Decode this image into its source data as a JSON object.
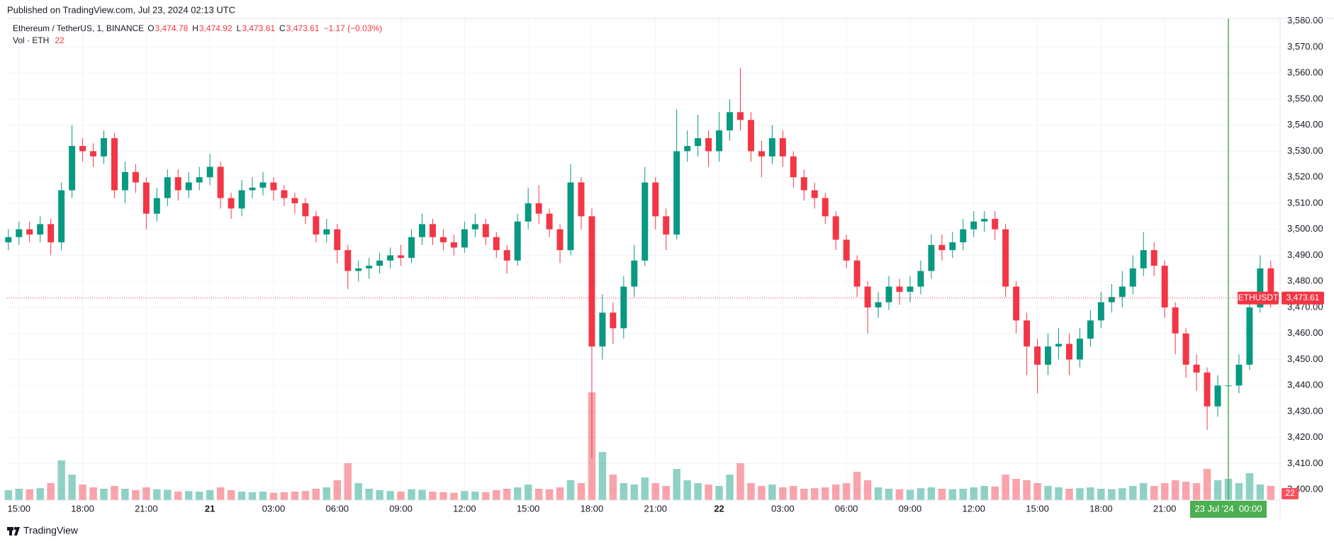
{
  "header": {
    "published": "Published on TradingView.com, Jul 23, 2024 02:13 UTC"
  },
  "footer": {
    "brand": "TradingView"
  },
  "chart_data": {
    "type": "candlestick",
    "legend": {
      "name": "Ethereum / TetherUS, 1, BINANCE",
      "o": "O",
      "open": "3,474.78",
      "h": "H",
      "high": "3,474.92",
      "l": "L",
      "low": "3,473.61",
      "c": "C",
      "close": "3,473.61",
      "change": "−1.17 (−0.03%)",
      "volume_name": "Vol · ETH",
      "volume": "22"
    },
    "symbol": "ETHUSDT",
    "last_price": {
      "value": 3473.61,
      "label": "3,473.61"
    },
    "up_color": "#089981",
    "down_color": "#f23645",
    "crosshair_color": "#4caf50",
    "categories": [
      null,
      "15:00",
      null,
      null,
      null,
      null,
      null,
      "18:00",
      null,
      null,
      null,
      null,
      null,
      "21:00",
      null,
      null,
      null,
      null,
      null,
      "21",
      null,
      null,
      null,
      null,
      null,
      "03:00",
      null,
      null,
      null,
      null,
      null,
      "06:00",
      null,
      null,
      null,
      null,
      null,
      "09:00",
      null,
      null,
      null,
      null,
      null,
      "12:00",
      null,
      null,
      null,
      null,
      null,
      "15:00",
      null,
      null,
      null,
      null,
      null,
      "18:00",
      null,
      null,
      null,
      null,
      null,
      "21:00",
      null,
      null,
      null,
      null,
      null,
      "22",
      null,
      null,
      null,
      null,
      null,
      "03:00",
      null,
      null,
      null,
      null,
      null,
      "06:00",
      null,
      null,
      null,
      null,
      null,
      "09:00",
      null,
      null,
      null,
      null,
      null,
      "12:00",
      null,
      null,
      null,
      null,
      null,
      "15:00",
      null,
      null,
      null,
      null,
      null,
      "18:00",
      null,
      null,
      null,
      null,
      null,
      "21:00",
      null,
      null,
      null,
      null,
      null,
      "23 Jul '24  00:00",
      null,
      null,
      null,
      null
    ],
    "open": [
      3495,
      3497,
      3500,
      3498,
      3502,
      3495,
      3515,
      3532,
      3530,
      3528,
      3535,
      3515,
      3522,
      3518,
      3506,
      3512,
      3520,
      3515,
      3518,
      3520,
      3524,
      3512,
      3508,
      3515,
      3516,
      3518,
      3515,
      3512,
      3510,
      3505,
      3498,
      3500,
      3492,
      3484,
      3485,
      3486,
      3488,
      3490,
      3489,
      3497,
      3502,
      3497,
      3495,
      3493,
      3500,
      3502,
      3497,
      3492,
      3488,
      3503,
      3510,
      3506,
      3500,
      3492,
      3518,
      3505,
      3455,
      3468,
      3462,
      3478,
      3488,
      3518,
      3505,
      3498,
      3530,
      3532,
      3535,
      3530,
      3538,
      3545,
      3542,
      3530,
      3528,
      3535,
      3528,
      3520,
      3515,
      3512,
      3505,
      3496,
      3488,
      3478,
      3470,
      3472,
      3478,
      3476,
      3478,
      3484,
      3494,
      3492,
      3495,
      3500,
      3503,
      3504,
      3500,
      3478,
      3465,
      3455,
      3448,
      3455,
      3456,
      3450,
      3458,
      3465,
      3472,
      3474,
      3478,
      3485,
      3492,
      3486,
      3470,
      3460,
      3448,
      3445,
      3432,
      3440,
      3440,
      3448,
      3470,
      3485
    ],
    "high": [
      3500,
      3503,
      3503,
      3505,
      3504,
      3518,
      3540,
      3535,
      3533,
      3538,
      3537,
      3526,
      3525,
      3520,
      3516,
      3523,
      3523,
      3522,
      3524,
      3529,
      3526,
      3514,
      3519,
      3520,
      3522,
      3520,
      3517,
      3514,
      3512,
      3507,
      3504,
      3502,
      3494,
      3488,
      3489,
      3491,
      3493,
      3494,
      3500,
      3506,
      3504,
      3500,
      3498,
      3503,
      3506,
      3504,
      3499,
      3494,
      3506,
      3516,
      3517,
      3508,
      3502,
      3525,
      3520,
      3508,
      3475,
      3472,
      3482,
      3494,
      3524,
      3520,
      3508,
      3546,
      3538,
      3544,
      3538,
      3545,
      3550,
      3562,
      3545,
      3534,
      3540,
      3538,
      3530,
      3523,
      3518,
      3514,
      3507,
      3498,
      3490,
      3480,
      3476,
      3482,
      3481,
      3482,
      3488,
      3498,
      3498,
      3499,
      3504,
      3507,
      3507,
      3507,
      3502,
      3480,
      3468,
      3458,
      3460,
      3462,
      3460,
      3462,
      3469,
      3476,
      3479,
      3484,
      3490,
      3499,
      3495,
      3488,
      3472,
      3462,
      3452,
      3447,
      3444,
      3444,
      3452,
      3474,
      3490,
      3488
    ],
    "low": [
      3492,
      3494,
      3495,
      3495,
      3490,
      3492,
      3512,
      3526,
      3524,
      3525,
      3512,
      3510,
      3514,
      3500,
      3503,
      3509,
      3511,
      3512,
      3515,
      3517,
      3508,
      3504,
      3505,
      3512,
      3513,
      3511,
      3509,
      3506,
      3502,
      3495,
      3495,
      3487,
      3477,
      3480,
      3481,
      3483,
      3485,
      3486,
      3487,
      3494,
      3494,
      3492,
      3490,
      3491,
      3497,
      3494,
      3489,
      3483,
      3486,
      3500,
      3502,
      3497,
      3487,
      3490,
      3500,
      3412,
      3450,
      3456,
      3458,
      3474,
      3486,
      3500,
      3492,
      3496,
      3526,
      3528,
      3524,
      3526,
      3534,
      3538,
      3526,
      3520,
      3525,
      3524,
      3516,
      3511,
      3508,
      3502,
      3492,
      3485,
      3474,
      3460,
      3466,
      3469,
      3471,
      3472,
      3475,
      3481,
      3488,
      3489,
      3492,
      3497,
      3499,
      3496,
      3474,
      3460,
      3444,
      3437,
      3444,
      3450,
      3444,
      3447,
      3455,
      3462,
      3468,
      3470,
      3475,
      3482,
      3482,
      3466,
      3452,
      3443,
      3438,
      3423,
      3428,
      3435,
      3437,
      3446,
      3468,
      3470
    ],
    "close": [
      3497,
      3500,
      3498,
      3502,
      3495,
      3515,
      3532,
      3530,
      3528,
      3535,
      3515,
      3522,
      3518,
      3506,
      3512,
      3520,
      3515,
      3518,
      3520,
      3524,
      3512,
      3508,
      3515,
      3516,
      3518,
      3515,
      3512,
      3510,
      3505,
      3498,
      3500,
      3492,
      3484,
      3485,
      3486,
      3488,
      3490,
      3489,
      3497,
      3502,
      3497,
      3495,
      3493,
      3500,
      3502,
      3497,
      3492,
      3488,
      3503,
      3510,
      3506,
      3500,
      3492,
      3518,
      3505,
      3455,
      3468,
      3462,
      3478,
      3488,
      3518,
      3505,
      3498,
      3530,
      3532,
      3535,
      3530,
      3538,
      3545,
      3542,
      3530,
      3528,
      3535,
      3528,
      3520,
      3515,
      3512,
      3505,
      3496,
      3488,
      3478,
      3470,
      3472,
      3478,
      3476,
      3478,
      3484,
      3494,
      3492,
      3495,
      3500,
      3503,
      3504,
      3500,
      3478,
      3465,
      3455,
      3448,
      3455,
      3456,
      3450,
      3458,
      3465,
      3472,
      3474,
      3478,
      3485,
      3492,
      3486,
      3470,
      3460,
      3448,
      3445,
      3432,
      3440,
      3440,
      3448,
      3470,
      3485,
      3473.61
    ],
    "volume": [
      35,
      40,
      38,
      42,
      60,
      140,
      90,
      55,
      45,
      40,
      50,
      40,
      35,
      45,
      38,
      36,
      30,
      32,
      30,
      35,
      45,
      35,
      30,
      28,
      30,
      26,
      28,
      30,
      32,
      40,
      45,
      70,
      130,
      60,
      40,
      35,
      32,
      30,
      38,
      36,
      30,
      28,
      26,
      32,
      30,
      28,
      35,
      40,
      45,
      55,
      40,
      38,
      45,
      70,
      60,
      380,
      170,
      90,
      60,
      55,
      80,
      60,
      50,
      110,
      70,
      60,
      55,
      50,
      90,
      130,
      60,
      50,
      55,
      45,
      50,
      40,
      42,
      45,
      55,
      60,
      100,
      70,
      45,
      40,
      38,
      36,
      42,
      45,
      40,
      38,
      40,
      45,
      50,
      48,
      90,
      75,
      70,
      60,
      50,
      45,
      40,
      42,
      45,
      40,
      38,
      42,
      50,
      60,
      50,
      60,
      70,
      65,
      60,
      110,
      70,
      75,
      60,
      95,
      55,
      50
    ],
    "volume_lim": [
      0,
      1700
    ],
    "ylim": [
      3396,
      3581
    ],
    "yticks": [
      {
        "value": 3400,
        "label": "3,400.00"
      },
      {
        "value": 3410,
        "label": "3,410.00"
      },
      {
        "value": 3420,
        "label": "3,420.00"
      },
      {
        "value": 3430,
        "label": "3,430.00"
      },
      {
        "value": 3440,
        "label": "3,440.00"
      },
      {
        "value": 3450,
        "label": "3,450.00"
      },
      {
        "value": 3460,
        "label": "3,460.00"
      },
      {
        "value": 3470,
        "label": "3,470.00"
      },
      {
        "value": 3480,
        "label": "3,480.00"
      },
      {
        "value": 3490,
        "label": "3,490.00"
      },
      {
        "value": 3500,
        "label": "3,500.00"
      },
      {
        "value": 3510,
        "label": "3,510.00"
      },
      {
        "value": 3520,
        "label": "3,520.00"
      },
      {
        "value": 3530,
        "label": "3,530.00"
      },
      {
        "value": 3540,
        "label": "3,540.00"
      },
      {
        "value": 3550,
        "label": "3,550.00"
      },
      {
        "value": 3560,
        "label": "3,560.00"
      },
      {
        "value": 3570,
        "label": "3,570.00"
      },
      {
        "value": 3580,
        "label": "3,580.00"
      }
    ],
    "grid": true
  }
}
